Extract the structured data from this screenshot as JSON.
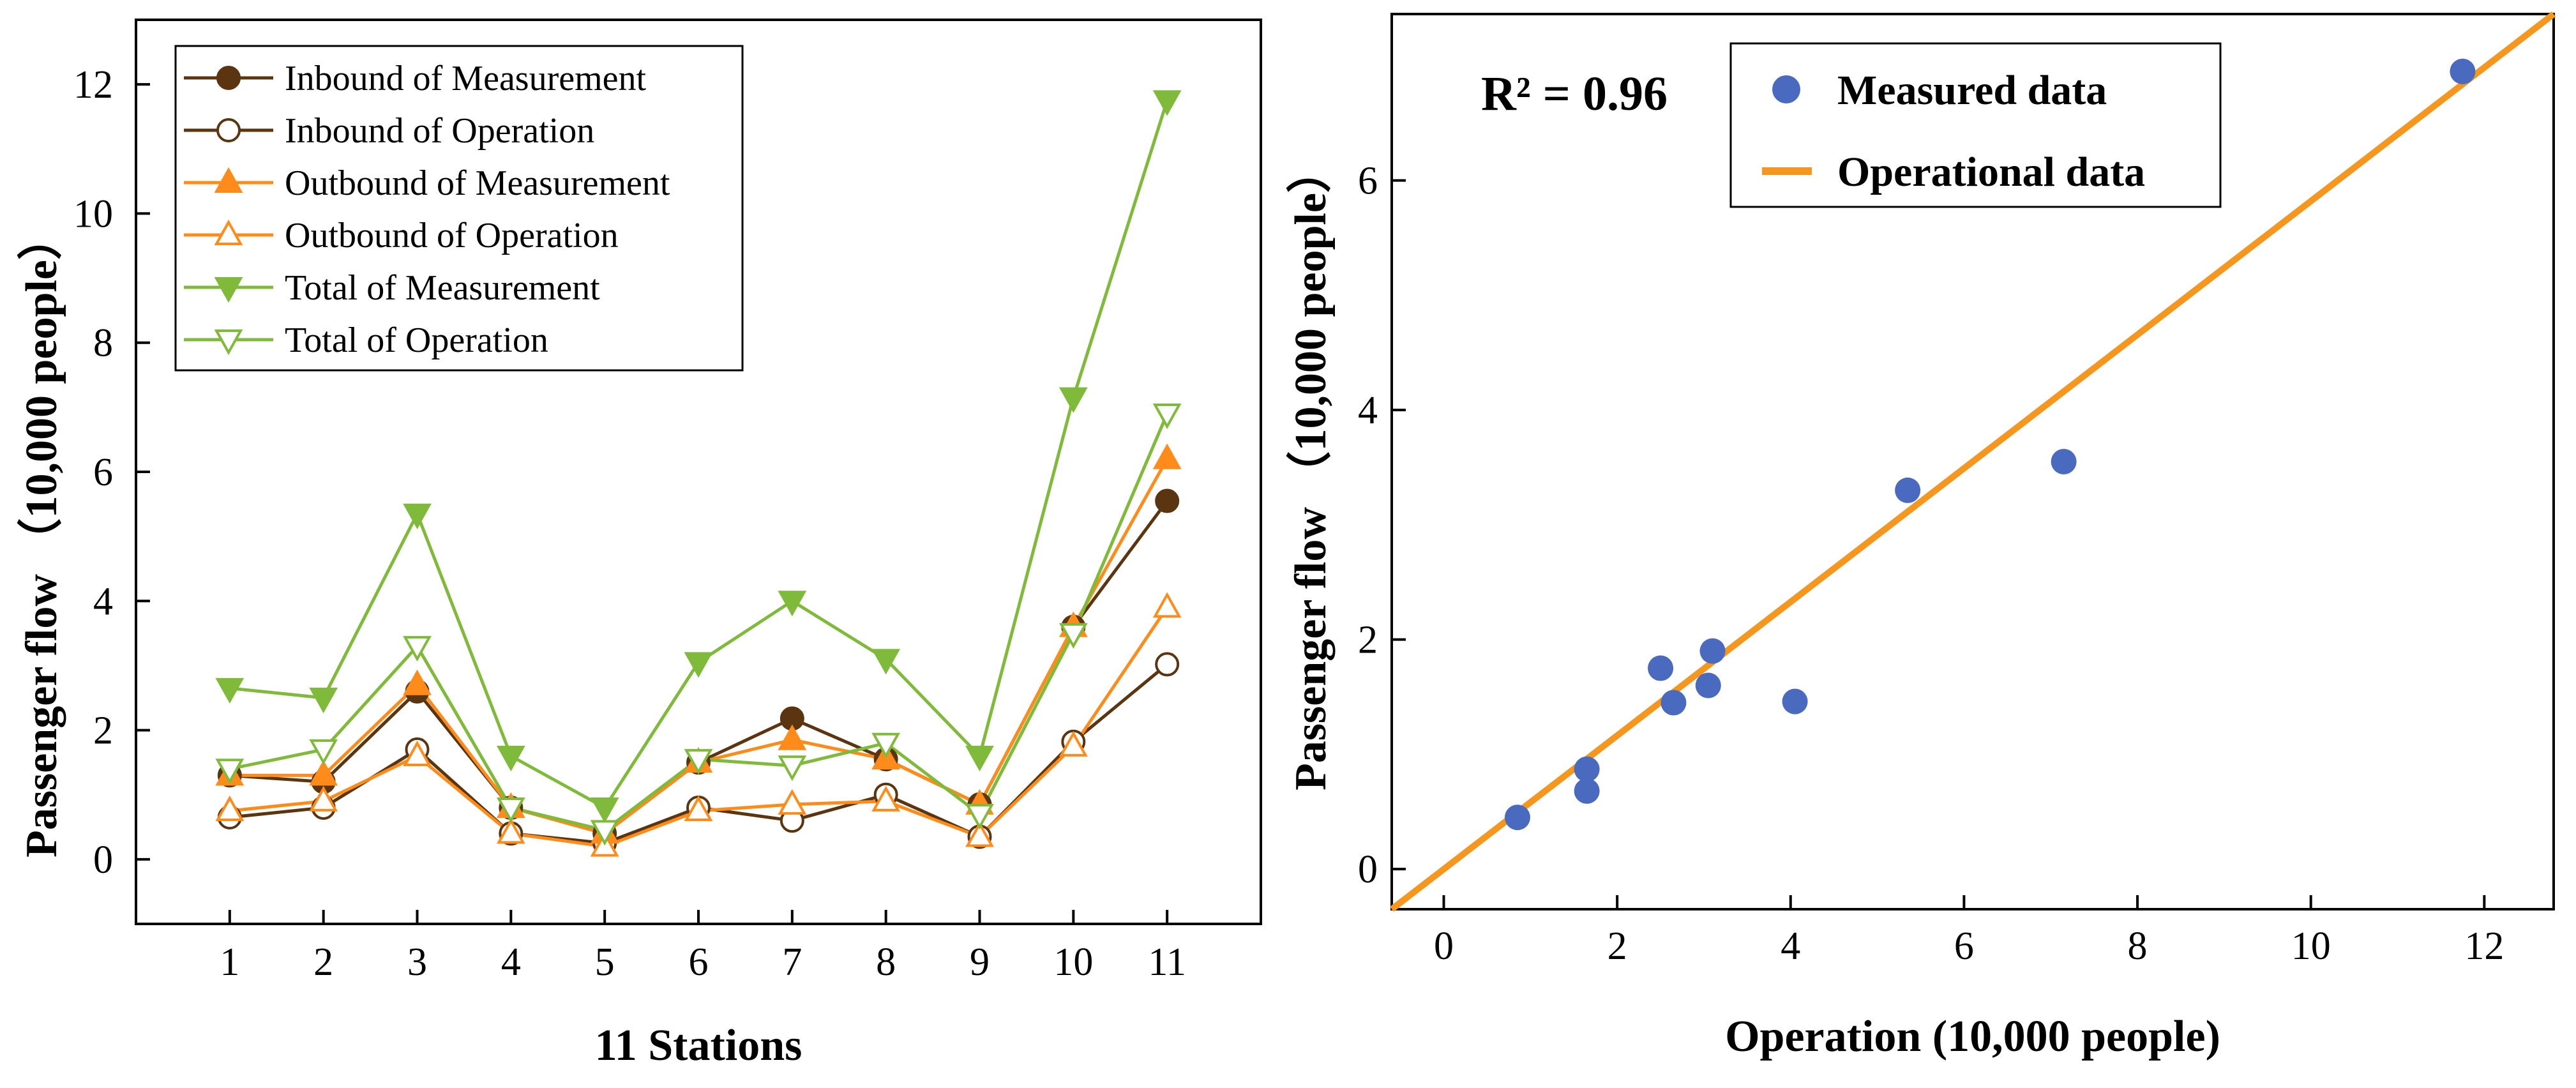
{
  "chart_data": [
    {
      "type": "line",
      "title": "",
      "xlabel": "11 Stations",
      "ylabel": "Passenger flow （10,000 people）",
      "categories": [
        "1",
        "2",
        "3",
        "4",
        "5",
        "6",
        "7",
        "8",
        "9",
        "10",
        "11"
      ],
      "xlim": [
        0,
        12
      ],
      "ylim": [
        -1,
        13
      ],
      "yticks": [
        "0",
        "2",
        "4",
        "6",
        "8",
        "10",
        "12"
      ],
      "grid": false,
      "legend_position": "top-left",
      "series": [
        {
          "name": "Inbound of Measurement",
          "color": "#5a3510",
          "marker": "circle-filled",
          "values": [
            1.3,
            1.2,
            2.6,
            0.8,
            0.4,
            1.5,
            2.18,
            1.55,
            0.85,
            3.6,
            5.55
          ]
        },
        {
          "name": "Inbound of Operation",
          "color": "#5a3510",
          "marker": "circle-open",
          "values": [
            0.65,
            0.8,
            1.7,
            0.4,
            0.25,
            0.8,
            0.6,
            1.0,
            0.35,
            1.82,
            3.02
          ]
        },
        {
          "name": "Outbound of Measurement",
          "color": "#ff8c1a",
          "marker": "triangle-up-filled",
          "values": [
            1.3,
            1.3,
            2.7,
            0.8,
            0.4,
            1.5,
            1.85,
            1.55,
            0.85,
            3.6,
            6.2
          ]
        },
        {
          "name": "Outbound of Operation",
          "color": "#ff8c1a",
          "marker": "triangle-up-open",
          "values": [
            0.75,
            0.9,
            1.6,
            0.4,
            0.2,
            0.75,
            0.85,
            0.9,
            0.35,
            1.75,
            3.9
          ]
        },
        {
          "name": "Total of Measurement",
          "color": "#7fba3a",
          "marker": "triangle-down-filled",
          "values": [
            2.65,
            2.5,
            5.35,
            1.6,
            0.8,
            3.05,
            4.0,
            3.1,
            1.6,
            7.15,
            11.75
          ]
        },
        {
          "name": "Total of Operation",
          "color": "#7fba3a",
          "marker": "triangle-down-open",
          "values": [
            1.4,
            1.7,
            3.3,
            0.8,
            0.45,
            1.55,
            1.45,
            1.8,
            0.7,
            3.5,
            6.9
          ]
        }
      ]
    },
    {
      "type": "scatter",
      "title": "",
      "xlabel": "Operation (10,000 people)",
      "ylabel": "Passenger flow （10,000 people）",
      "xlim": [
        -0.6,
        12.8
      ],
      "ylim": [
        -0.35,
        7.45
      ],
      "xticks": [
        "0",
        "2",
        "4",
        "6",
        "8",
        "10",
        "12"
      ],
      "yticks": [
        "0",
        "2",
        "4",
        "6"
      ],
      "grid": false,
      "legend_position": "top-center",
      "annotation": "R² = 0.96",
      "series": [
        {
          "name": "Measured data",
          "color": "#4a6abf",
          "marker": "circle",
          "x": [
            0.85,
            1.65,
            1.65,
            2.5,
            2.65,
            3.05,
            3.1,
            4.05,
            5.35,
            7.15,
            11.75
          ],
          "y": [
            0.45,
            0.87,
            0.68,
            1.75,
            1.45,
            1.6,
            1.9,
            1.46,
            3.3,
            3.55,
            6.95
          ]
        },
        {
          "name": "Operational data",
          "color": "#f5961e",
          "marker": "line",
          "x": [
            -0.6,
            12.8
          ],
          "y": [
            -0.35,
            7.45
          ]
        }
      ]
    }
  ]
}
